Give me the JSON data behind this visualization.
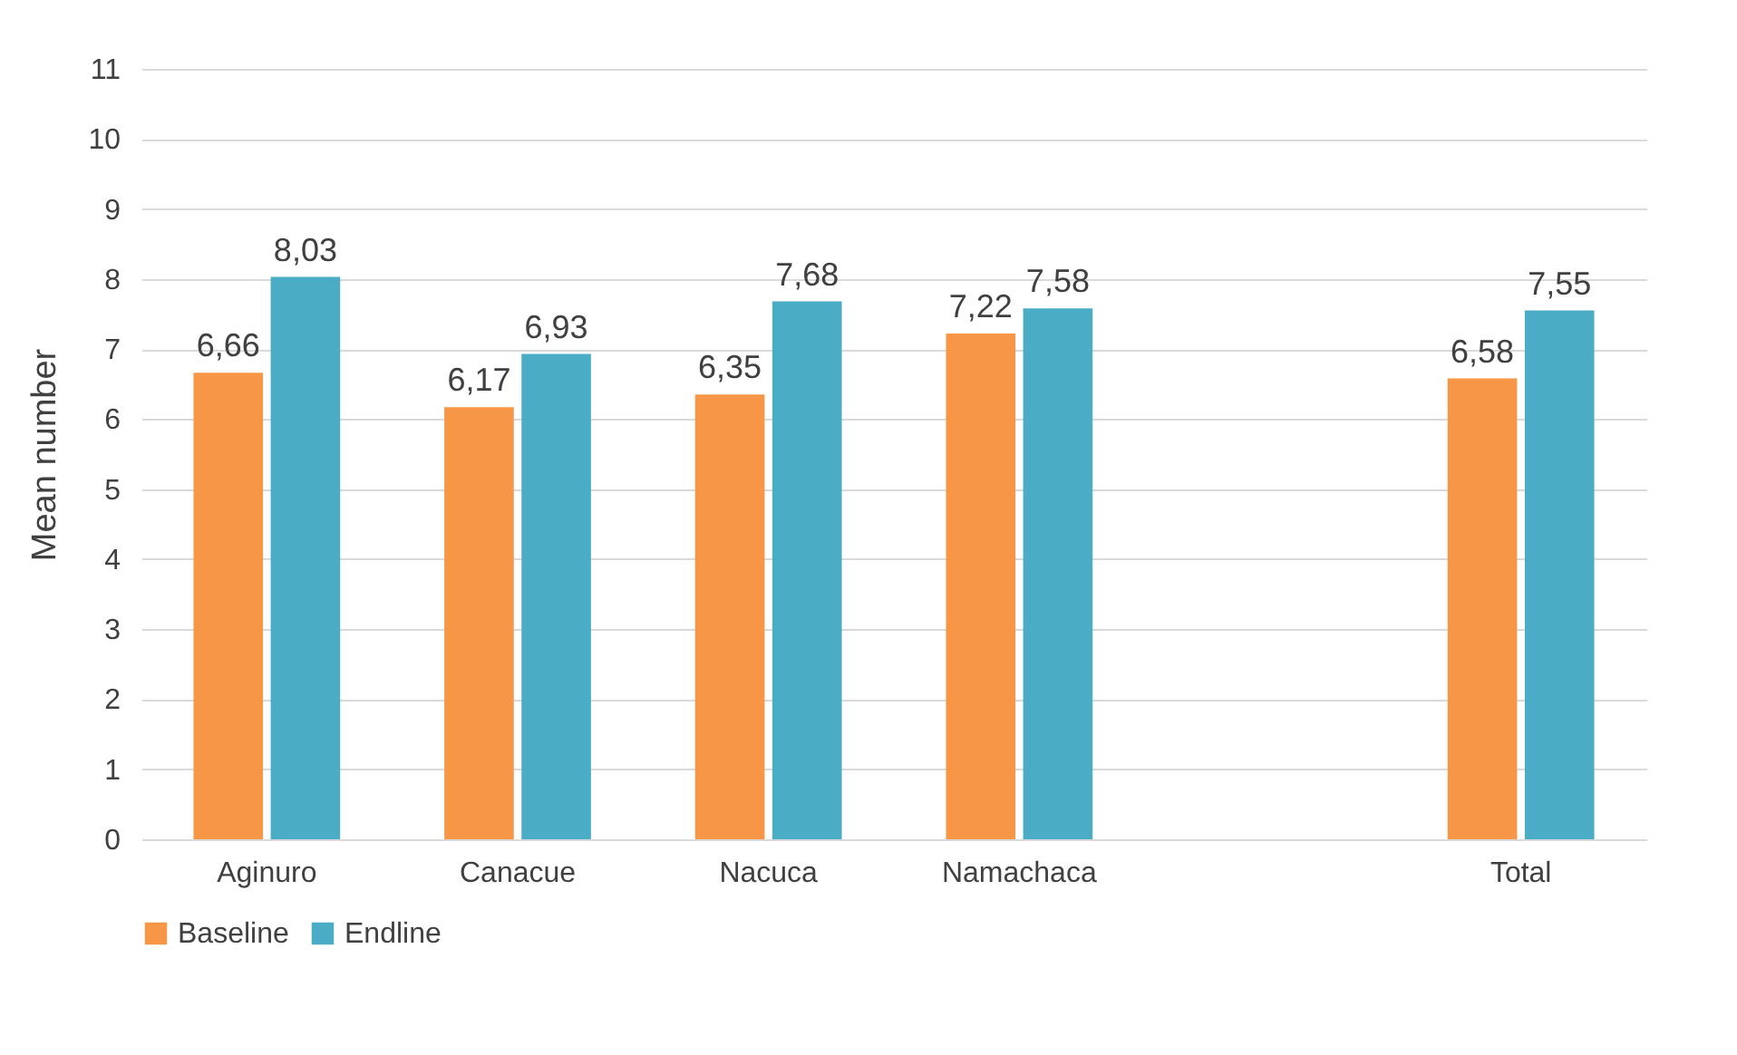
{
  "chart_data": {
    "type": "bar",
    "ylabel": "Mean number",
    "categories": [
      "Aginuro",
      "Canacue",
      "Nacuca",
      "Namachaca",
      null,
      "Total"
    ],
    "series": [
      {
        "name": "Baseline",
        "color": "#f79646",
        "values": [
          6.66,
          6.17,
          6.35,
          7.22,
          null,
          6.58
        ],
        "value_labels": [
          "6,66",
          "6,17",
          "6,35",
          "7,22",
          null,
          "6,58"
        ]
      },
      {
        "name": "Endline",
        "color": "#4bacc6",
        "values": [
          8.03,
          6.93,
          7.68,
          7.58,
          null,
          7.55
        ],
        "value_labels": [
          "8,03",
          "6,93",
          "7,68",
          "7,58",
          null,
          "7,55"
        ]
      }
    ],
    "ylim": [
      0,
      11
    ],
    "yticks": [
      0,
      1,
      2,
      3,
      4,
      5,
      6,
      7,
      8,
      9,
      10,
      11
    ],
    "grid": "y",
    "legend": "bottom"
  }
}
